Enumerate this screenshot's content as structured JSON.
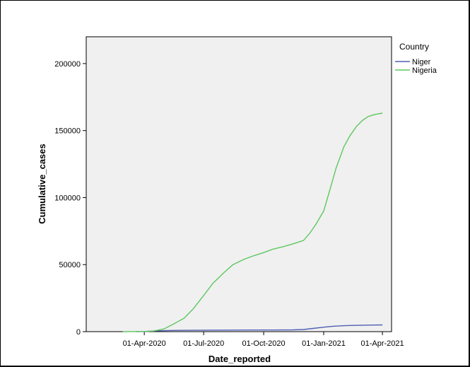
{
  "chart_data": {
    "type": "line",
    "xlabel": "Date_reported",
    "ylabel": "Cumulative_cases",
    "ylim": [
      0,
      220000
    ],
    "xlim": [
      "2020-01-03",
      "2021-04-15"
    ],
    "y_ticks": [
      0,
      50000,
      100000,
      150000,
      200000
    ],
    "y_tick_labels": [
      "0",
      "50000",
      "100000",
      "150000",
      "200000"
    ],
    "x_ticks": [
      "2020-04-01",
      "2020-07-01",
      "2020-10-01",
      "2021-01-01",
      "2021-04-01"
    ],
    "x_tick_labels": [
      "01-Apr-2020",
      "01-Jul-2020",
      "01-Oct-2020",
      "01-Jan-2021",
      "01-Apr-2021"
    ],
    "grid": false,
    "legend": {
      "title": "Country",
      "position": "right"
    },
    "series": [
      {
        "name": "Niger",
        "color": "#4f5fb5",
        "x": [
          "2020-03-19",
          "2020-04-01",
          "2020-04-20",
          "2020-05-15",
          "2020-06-15",
          "2020-07-15",
          "2020-08-15",
          "2020-09-15",
          "2020-10-15",
          "2020-11-15",
          "2020-12-01",
          "2020-12-15",
          "2021-01-01",
          "2021-01-15",
          "2021-02-01",
          "2021-02-15",
          "2021-03-01",
          "2021-03-15",
          "2021-04-01"
        ],
        "y": [
          1,
          100,
          650,
          900,
          1020,
          1100,
          1160,
          1190,
          1210,
          1300,
          1600,
          2400,
          3350,
          4000,
          4450,
          4650,
          4800,
          4900,
          5000
        ]
      },
      {
        "name": "Nigeria",
        "color": "#5fc760",
        "x": [
          "2020-02-28",
          "2020-03-15",
          "2020-04-01",
          "2020-04-15",
          "2020-05-01",
          "2020-05-15",
          "2020-06-01",
          "2020-06-15",
          "2020-07-01",
          "2020-07-15",
          "2020-08-01",
          "2020-08-15",
          "2020-09-01",
          "2020-09-15",
          "2020-10-01",
          "2020-10-15",
          "2020-11-01",
          "2020-11-15",
          "2020-12-01",
          "2020-12-10",
          "2020-12-20",
          "2021-01-01",
          "2021-01-10",
          "2021-01-20",
          "2021-02-01",
          "2021-02-10",
          "2021-02-20",
          "2021-03-01",
          "2021-03-10",
          "2021-03-20",
          "2021-04-01"
        ],
        "y": [
          1,
          30,
          180,
          400,
          2000,
          5500,
          10000,
          17000,
          27000,
          36000,
          44000,
          50000,
          54000,
          56500,
          59000,
          61500,
          63500,
          65500,
          68000,
          73000,
          80000,
          90000,
          105000,
          122000,
          138000,
          146000,
          153000,
          157500,
          160500,
          162000,
          163000
        ]
      }
    ]
  }
}
